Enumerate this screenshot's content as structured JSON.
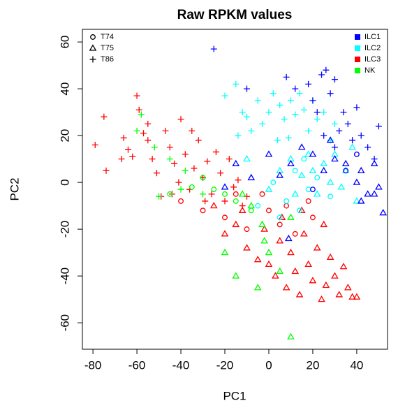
{
  "chart_data": {
    "type": "scatter",
    "title": "Raw RPKM values",
    "x_label": "PC1",
    "y_label": "PC2",
    "xlim": [
      -84.8,
      54
    ],
    "ylim": [
      -71.3,
      65.4
    ],
    "xticks": [
      -80,
      -60,
      -40,
      -20,
      0,
      20,
      40
    ],
    "yticks": [
      -60,
      -40,
      -20,
      0,
      20,
      40,
      60
    ],
    "shape_legend": [
      {
        "name": "T74",
        "marker": "circle"
      },
      {
        "name": "T75",
        "marker": "triangle"
      },
      {
        "name": "T86",
        "marker": "plus"
      }
    ],
    "color_legend": [
      {
        "name": "ILC1",
        "color": "#0000ff"
      },
      {
        "name": "ILC2",
        "color": "#00ffff"
      },
      {
        "name": "ILC3",
        "color": "#ff0000"
      },
      {
        "name": "NK",
        "color": "#00ff00"
      }
    ],
    "series": [
      {
        "cell_type": "ILC3",
        "donor": "T86",
        "x": [
          -79,
          -75,
          -74,
          -66,
          -64,
          -62,
          -60,
          -59,
          -57,
          -55,
          -53,
          -51,
          -49,
          -47,
          -45,
          -43,
          -41,
          -40,
          -38,
          -36,
          -34,
          -32,
          -30,
          -28,
          -26,
          -24,
          -22,
          -20,
          -18,
          -16,
          -14,
          -12,
          -10,
          -44,
          -55,
          -67,
          -35,
          -29
        ],
        "y": [
          16,
          28,
          5,
          19,
          14,
          11,
          37,
          31,
          21,
          18,
          10,
          4,
          -6,
          22,
          15,
          8,
          0,
          27,
          12,
          -3,
          6,
          18,
          2,
          9,
          -5,
          13,
          4,
          -8,
          10,
          -2,
          1,
          -10,
          -6,
          -5,
          25,
          10,
          22,
          -8
        ]
      },
      {
        "cell_type": "ILC3",
        "donor": "T75",
        "x": [
          -25,
          -20,
          -15,
          -10,
          -5,
          0,
          3,
          5,
          8,
          10,
          12,
          14,
          16,
          18,
          20,
          22,
          24,
          26,
          28,
          30,
          32,
          34,
          36,
          38,
          40,
          -2,
          6,
          15,
          25,
          -12
        ],
        "y": [
          -10,
          -22,
          -18,
          -28,
          -33,
          -35,
          -40,
          -25,
          -45,
          -30,
          -38,
          -48,
          -22,
          -35,
          -42,
          -28,
          -50,
          -44,
          -32,
          -40,
          -48,
          -36,
          -45,
          -49,
          -49,
          -20,
          -15,
          -12,
          -18,
          -12
        ]
      },
      {
        "cell_type": "ILC3",
        "donor": "T74",
        "x": [
          -40,
          -30,
          -20,
          -10,
          -3,
          5,
          12,
          18,
          -15,
          0,
          8,
          20
        ],
        "y": [
          -8,
          -12,
          -15,
          -20,
          -5,
          -18,
          -22,
          -8,
          -5,
          -12,
          -10,
          -15
        ]
      },
      {
        "cell_type": "ILC2",
        "donor": "T86",
        "x": [
          -20,
          -15,
          -12,
          -10,
          -8,
          -5,
          -3,
          0,
          2,
          5,
          7,
          10,
          12,
          14,
          16,
          18,
          20,
          22,
          25,
          28,
          30,
          -14,
          4,
          9
        ],
        "y": [
          37,
          42,
          30,
          28,
          22,
          35,
          25,
          30,
          38,
          33,
          27,
          35,
          29,
          38,
          31,
          22,
          35,
          27,
          30,
          18,
          25,
          20,
          18,
          19
        ]
      },
      {
        "cell_type": "ILC2",
        "donor": "T75",
        "x": [
          -10,
          0,
          5,
          10,
          15,
          18,
          22,
          25,
          28,
          30,
          33,
          35,
          38,
          40,
          12,
          20
        ],
        "y": [
          10,
          -3,
          5,
          10,
          3,
          12,
          -5,
          8,
          0,
          12,
          -2,
          5,
          15,
          -8,
          -5,
          5
        ]
      },
      {
        "cell_type": "ILC2",
        "donor": "T74",
        "x": [
          -5,
          2,
          8,
          14,
          18,
          22,
          12,
          28,
          16,
          5
        ],
        "y": [
          -10,
          0,
          -8,
          -12,
          -3,
          2,
          5,
          -6,
          10,
          -15
        ]
      },
      {
        "cell_type": "ILC1",
        "donor": "T86",
        "x": [
          -25,
          -10,
          8,
          12,
          18,
          20,
          22,
          24,
          26,
          28,
          30,
          32,
          34,
          36,
          38,
          40,
          42,
          45,
          48,
          50,
          25,
          30
        ],
        "y": [
          57,
          40,
          45,
          40,
          42,
          35,
          30,
          46,
          48,
          38,
          44,
          22,
          30,
          25,
          18,
          32,
          20,
          15,
          10,
          24,
          20,
          15
        ]
      },
      {
        "cell_type": "ILC1",
        "donor": "T75",
        "x": [
          -15,
          -8,
          0,
          5,
          10,
          15,
          20,
          25,
          30,
          35,
          40,
          42,
          45,
          48,
          50,
          52,
          48,
          42,
          28,
          -20,
          9
        ],
        "y": [
          8,
          2,
          12,
          3,
          8,
          15,
          12,
          5,
          10,
          8,
          0,
          5,
          -5,
          8,
          -2,
          -13,
          -5,
          -8,
          18,
          -2,
          -24
        ]
      },
      {
        "cell_type": "ILC1",
        "donor": "T74",
        "x": [
          35,
          40,
          20
        ],
        "y": [
          5,
          12,
          -3
        ]
      },
      {
        "cell_type": "NK",
        "donor": "T86",
        "x": [
          -58,
          -60,
          -52,
          -45,
          -38,
          -30,
          -50,
          -40
        ],
        "y": [
          29,
          22,
          15,
          10,
          5,
          -5,
          -6,
          -3
        ]
      },
      {
        "cell_type": "NK",
        "donor": "T75",
        "x": [
          -8,
          -2,
          0,
          -15,
          -5,
          5,
          -20,
          10,
          10,
          -12,
          -3
        ],
        "y": [
          -10,
          -25,
          -30,
          -40,
          -45,
          -38,
          -30,
          -15,
          -66,
          -5,
          -18
        ]
      },
      {
        "cell_type": "NK",
        "donor": "T74",
        "x": [
          -45,
          -35,
          -25,
          -20,
          -15,
          -8,
          -30
        ],
        "y": [
          -5,
          -2,
          -3,
          -5,
          -8,
          -12,
          2
        ]
      }
    ]
  }
}
